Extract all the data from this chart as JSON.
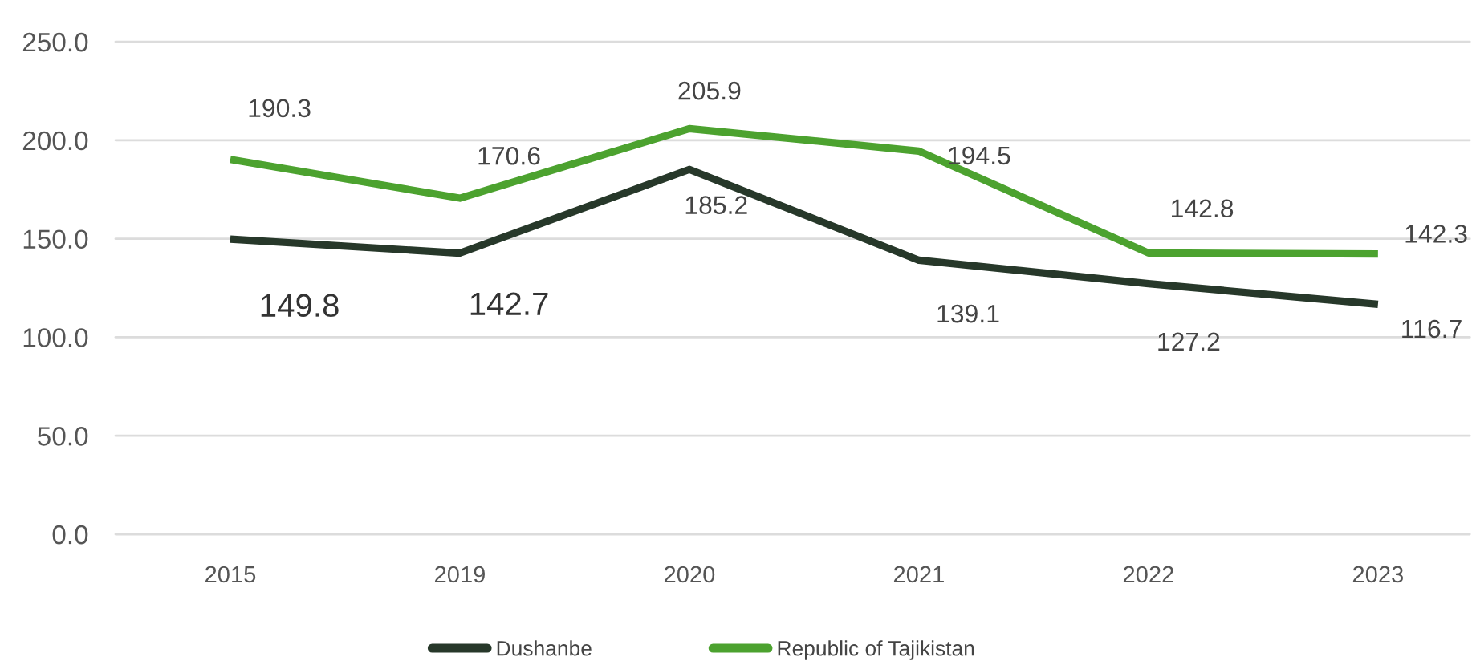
{
  "chart_data": {
    "type": "line",
    "categories": [
      "2015",
      "2019",
      "2020",
      "2021",
      "2022",
      "2023"
    ],
    "series": [
      {
        "name": "Dushanbe",
        "color": "#27382a",
        "values": [
          149.8,
          142.7,
          185.2,
          139.1,
          127.2,
          116.7
        ]
      },
      {
        "name": "Republic of Tajikistan",
        "color": "#4ca22f",
        "values": [
          190.3,
          170.6,
          205.9,
          194.5,
          142.8,
          142.3
        ]
      }
    ],
    "ylim": [
      0,
      250
    ],
    "yticks": [
      {
        "value": 0,
        "label": "0.0"
      },
      {
        "value": 50,
        "label": "50.0"
      },
      {
        "value": 100,
        "label": "100.0"
      },
      {
        "value": 150,
        "label": "150.0"
      },
      {
        "value": 200,
        "label": "200.0"
      },
      {
        "value": 250,
        "label": "250.0"
      }
    ],
    "grid": "y",
    "legend": "bottom",
    "data_labels": true
  }
}
